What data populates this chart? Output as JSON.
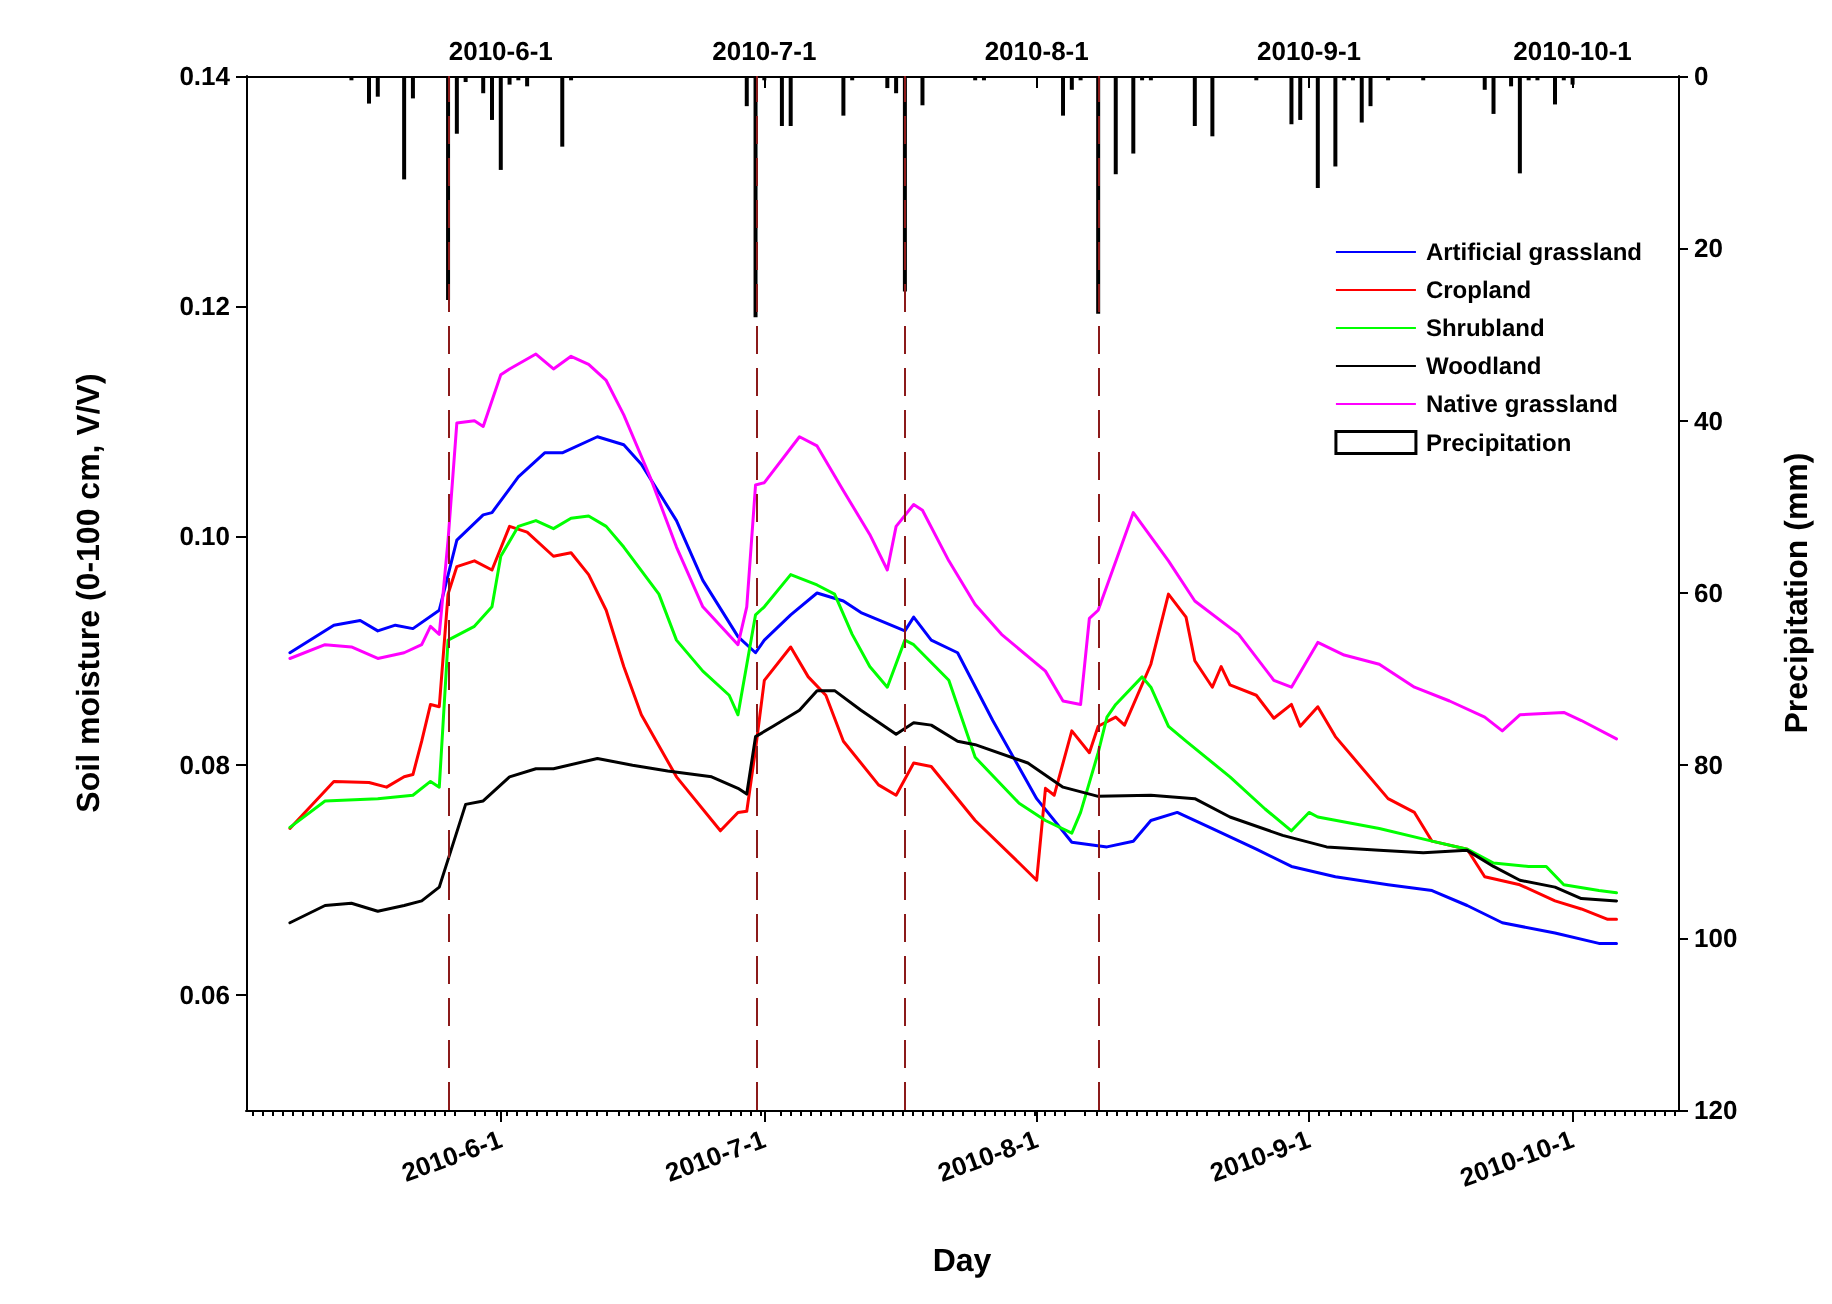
{
  "chart_data": {
    "type": "line",
    "xlabel": "Day",
    "ylabel": "Soil moisture (0-100 cm, V/V)",
    "y2label": "Precipitation (mm)",
    "xlim": [
      "2010-05-03",
      "2010-10-13"
    ],
    "xticks": [
      {
        "value": "2010-06-01",
        "label": "2010-6-1"
      },
      {
        "value": "2010-07-01",
        "label": "2010-7-1"
      },
      {
        "value": "2010-08-01",
        "label": "2010-8-1"
      },
      {
        "value": "2010-09-01",
        "label": "2010-9-1"
      },
      {
        "value": "2010-10-01",
        "label": "2010-10-1"
      }
    ],
    "x2lim": [
      "2010-05-03",
      "2010-10-13"
    ],
    "x2ticks": [
      {
        "value": "2010-06-01",
        "label": "2010-6-1"
      },
      {
        "value": "2010-07-01",
        "label": "2010-7-1"
      },
      {
        "value": "2010-08-01",
        "label": "2010-8-1"
      },
      {
        "value": "2010-09-01",
        "label": "2010-9-1"
      },
      {
        "value": "2010-10-01",
        "label": "2010-10-1"
      }
    ],
    "ylim": [
      0.05,
      0.14
    ],
    "yticks": [
      0.06,
      0.08,
      {
        "value": 0.1,
        "label": "0.10"
      },
      0.12,
      0.14
    ],
    "y2lim": [
      120,
      0
    ],
    "y2ticks": [
      0,
      20,
      40,
      60,
      80,
      100,
      120
    ],
    "grid": false,
    "legend": "top right",
    "ref_lines": [
      {
        "axis": "x",
        "value": "2010-05-26",
        "color": "#8b1a1a",
        "line_style": "dashed"
      },
      {
        "axis": "x",
        "value": "2010-06-30",
        "color": "#8b1a1a",
        "line_style": "dashed"
      },
      {
        "axis": "x",
        "value": "2010-07-17",
        "color": "#8b1a1a",
        "line_style": "dashed"
      },
      {
        "axis": "x",
        "value": "2010-08-08",
        "color": "#8b1a1a",
        "line_style": "dashed"
      }
    ],
    "series": [
      {
        "name": "Artificial grassland",
        "color": "#0000ff",
        "x": [
          "2010-05-08",
          "2010-05-13",
          "2010-05-16",
          "2010-05-18",
          "2010-05-20",
          "2010-05-22",
          "2010-05-25",
          "2010-05-27",
          "2010-05-30",
          "2010-05-31",
          "2010-06-03",
          "2010-06-06",
          "2010-06-08",
          "2010-06-12",
          "2010-06-15",
          "2010-06-17",
          "2010-06-21",
          "2010-06-24",
          "2010-06-28",
          "2010-06-30",
          "2010-07-01",
          "2010-07-04",
          "2010-07-07",
          "2010-07-10",
          "2010-07-12",
          "2010-07-17",
          "2010-07-18",
          "2010-07-20",
          "2010-07-23",
          "2010-07-27",
          "2010-08-01",
          "2010-08-05",
          "2010-08-09",
          "2010-08-12",
          "2010-08-14",
          "2010-08-17",
          "2010-08-21",
          "2010-08-26",
          "2010-08-30",
          "2010-09-04",
          "2010-09-10",
          "2010-09-15",
          "2010-09-19",
          "2010-09-23",
          "2010-09-29",
          "2010-10-04",
          "2010-10-06"
        ],
        "values": [
          0.0898,
          0.0922,
          0.0926,
          0.0917,
          0.0922,
          0.0919,
          0.0935,
          0.0996,
          0.1018,
          0.102,
          0.1051,
          0.1072,
          0.1072,
          0.1086,
          0.1079,
          0.1062,
          0.1013,
          0.0961,
          0.0912,
          0.0898,
          0.0909,
          0.0931,
          0.095,
          0.0943,
          0.0933,
          0.0917,
          0.0929,
          0.0909,
          0.0898,
          0.0839,
          0.0771,
          0.0733,
          0.0729,
          0.0734,
          0.0752,
          0.0759,
          0.0745,
          0.0727,
          0.0712,
          0.0703,
          0.0696,
          0.0691,
          0.0678,
          0.0663,
          0.0654,
          0.0645,
          0.0645
        ]
      },
      {
        "name": "Cropland",
        "color": "#ff0000",
        "x": [
          "2010-05-08",
          "2010-05-13",
          "2010-05-17",
          "2010-05-19",
          "2010-05-21",
          "2010-05-22",
          "2010-05-23",
          "2010-05-24",
          "2010-05-25",
          "2010-05-26",
          "2010-05-27",
          "2010-05-29",
          "2010-05-31",
          "2010-06-02",
          "2010-06-04",
          "2010-06-07",
          "2010-06-09",
          "2010-06-11",
          "2010-06-13",
          "2010-06-15",
          "2010-06-17",
          "2010-06-21",
          "2010-06-26",
          "2010-06-28",
          "2010-06-29",
          "2010-06-30",
          "2010-07-01",
          "2010-07-04",
          "2010-07-06",
          "2010-07-08",
          "2010-07-10",
          "2010-07-14",
          "2010-07-16",
          "2010-07-18",
          "2010-07-20",
          "2010-07-25",
          "2010-07-30",
          "2010-08-01",
          "2010-08-02",
          "2010-08-03",
          "2010-08-05",
          "2010-08-07",
          "2010-08-08",
          "2010-08-10",
          "2010-08-11",
          "2010-08-14",
          "2010-08-16",
          "2010-08-18",
          "2010-08-19",
          "2010-08-21",
          "2010-08-22",
          "2010-08-23",
          "2010-08-26",
          "2010-08-28",
          "2010-08-30",
          "2010-08-31",
          "2010-09-02",
          "2010-09-04",
          "2010-09-06",
          "2010-09-10",
          "2010-09-13",
          "2010-09-15",
          "2010-09-19",
          "2010-09-21",
          "2010-09-25",
          "2010-09-29",
          "2010-10-02",
          "2010-10-05",
          "2010-10-06"
        ],
        "values": [
          0.0745,
          0.0786,
          0.0785,
          0.0781,
          0.079,
          0.0792,
          0.0821,
          0.0853,
          0.0851,
          0.0949,
          0.0973,
          0.0978,
          0.097,
          0.1008,
          0.1003,
          0.0982,
          0.0985,
          0.0966,
          0.0935,
          0.0886,
          0.0844,
          0.079,
          0.0743,
          0.0759,
          0.076,
          0.0814,
          0.0874,
          0.0903,
          0.0877,
          0.0861,
          0.0821,
          0.0783,
          0.0774,
          0.0802,
          0.0799,
          0.0752,
          0.0715,
          0.07,
          0.078,
          0.0774,
          0.083,
          0.0811,
          0.0834,
          0.0842,
          0.0835,
          0.0888,
          0.0949,
          0.0929,
          0.0891,
          0.0868,
          0.0886,
          0.087,
          0.0861,
          0.0841,
          0.0853,
          0.0834,
          0.0851,
          0.0825,
          0.0807,
          0.0771,
          0.0759,
          0.0734,
          0.0727,
          0.0703,
          0.0696,
          0.0682,
          0.0675,
          0.0666,
          0.0666
        ]
      },
      {
        "name": "Shrubland",
        "color": "#00ff00",
        "x": [
          "2010-05-08",
          "2010-05-12",
          "2010-05-18",
          "2010-05-22",
          "2010-05-24",
          "2010-05-25",
          "2010-05-26",
          "2010-05-29",
          "2010-05-31",
          "2010-06-01",
          "2010-06-03",
          "2010-06-05",
          "2010-06-07",
          "2010-06-09",
          "2010-06-11",
          "2010-06-13",
          "2010-06-15",
          "2010-06-19",
          "2010-06-21",
          "2010-06-24",
          "2010-06-27",
          "2010-06-28",
          "2010-06-30",
          "2010-07-01",
          "2010-07-04",
          "2010-07-07",
          "2010-07-09",
          "2010-07-11",
          "2010-07-13",
          "2010-07-15",
          "2010-07-17",
          "2010-07-18",
          "2010-07-22",
          "2010-07-25",
          "2010-07-30",
          "2010-08-02",
          "2010-08-05",
          "2010-08-06",
          "2010-08-08",
          "2010-08-09",
          "2010-08-10",
          "2010-08-13",
          "2010-08-14",
          "2010-08-16",
          "2010-08-18",
          "2010-08-23",
          "2010-08-27",
          "2010-08-30",
          "2010-09-01",
          "2010-09-02",
          "2010-09-09",
          "2010-09-15",
          "2010-09-19",
          "2010-09-22",
          "2010-09-26",
          "2010-09-28",
          "2010-09-30",
          "2010-10-04",
          "2010-10-06"
        ],
        "values": [
          0.0746,
          0.0769,
          0.0771,
          0.0774,
          0.0786,
          0.0781,
          0.0909,
          0.0921,
          0.0938,
          0.0982,
          0.1008,
          0.1013,
          0.1006,
          0.1015,
          0.1017,
          0.1008,
          0.099,
          0.0949,
          0.0909,
          0.0882,
          0.0861,
          0.0844,
          0.0931,
          0.0938,
          0.0966,
          0.0957,
          0.0949,
          0.0914,
          0.0886,
          0.0868,
          0.0909,
          0.0905,
          0.0874,
          0.0807,
          0.0767,
          0.0752,
          0.0741,
          0.0759,
          0.0811,
          0.0842,
          0.0853,
          0.0877,
          0.0868,
          0.0834,
          0.0821,
          0.079,
          0.0762,
          0.0743,
          0.0759,
          0.0755,
          0.0745,
          0.0734,
          0.0727,
          0.0715,
          0.0712,
          0.0712,
          0.0696,
          0.0691,
          0.0689
        ]
      },
      {
        "name": "Woodland",
        "color": "#000000",
        "x": [
          "2010-05-08",
          "2010-05-12",
          "2010-05-15",
          "2010-05-18",
          "2010-05-21",
          "2010-05-23",
          "2010-05-25",
          "2010-05-28",
          "2010-05-30",
          "2010-06-02",
          "2010-06-05",
          "2010-06-07",
          "2010-06-12",
          "2010-06-16",
          "2010-06-20",
          "2010-06-25",
          "2010-06-28",
          "2010-06-29",
          "2010-06-30",
          "2010-07-02",
          "2010-07-05",
          "2010-07-07",
          "2010-07-09",
          "2010-07-12",
          "2010-07-16",
          "2010-07-18",
          "2010-07-20",
          "2010-07-23",
          "2010-07-25",
          "2010-07-31",
          "2010-08-04",
          "2010-08-08",
          "2010-08-14",
          "2010-08-19",
          "2010-08-23",
          "2010-08-29",
          "2010-09-03",
          "2010-09-09",
          "2010-09-14",
          "2010-09-19",
          "2010-09-22",
          "2010-09-25",
          "2010-09-29",
          "2010-10-02",
          "2010-10-06"
        ],
        "values": [
          0.0663,
          0.0678,
          0.068,
          0.0673,
          0.0678,
          0.0682,
          0.0694,
          0.0766,
          0.0769,
          0.079,
          0.0797,
          0.0797,
          0.0806,
          0.08,
          0.0795,
          0.079,
          0.078,
          0.0775,
          0.0825,
          0.0834,
          0.0848,
          0.0865,
          0.0865,
          0.0848,
          0.0827,
          0.0837,
          0.0835,
          0.0821,
          0.0818,
          0.0802,
          0.0781,
          0.0773,
          0.0774,
          0.0771,
          0.0755,
          0.0739,
          0.0729,
          0.0726,
          0.0724,
          0.0726,
          0.0712,
          0.07,
          0.0694,
          0.0684,
          0.0682
        ]
      },
      {
        "name": "Native grassland",
        "color": "#ff00ff",
        "x": [
          "2010-05-08",
          "2010-05-12",
          "2010-05-15",
          "2010-05-18",
          "2010-05-21",
          "2010-05-23",
          "2010-05-24",
          "2010-05-25",
          "2010-05-26",
          "2010-05-27",
          "2010-05-29",
          "2010-05-30",
          "2010-06-01",
          "2010-06-02",
          "2010-06-05",
          "2010-06-07",
          "2010-06-09",
          "2010-06-11",
          "2010-06-13",
          "2010-06-15",
          "2010-06-18",
          "2010-06-21",
          "2010-06-24",
          "2010-06-28",
          "2010-06-29",
          "2010-06-30",
          "2010-07-01",
          "2010-07-05",
          "2010-07-07",
          "2010-07-10",
          "2010-07-13",
          "2010-07-15",
          "2010-07-16",
          "2010-07-18",
          "2010-07-19",
          "2010-07-22",
          "2010-07-25",
          "2010-07-28",
          "2010-08-02",
          "2010-08-04",
          "2010-08-06",
          "2010-08-07",
          "2010-08-08",
          "2010-08-12",
          "2010-08-16",
          "2010-08-19",
          "2010-08-24",
          "2010-08-28",
          "2010-08-30",
          "2010-09-02",
          "2010-09-05",
          "2010-09-09",
          "2010-09-13",
          "2010-09-17",
          "2010-09-21",
          "2010-09-23",
          "2010-09-25",
          "2010-09-30",
          "2010-10-02",
          "2010-10-06"
        ],
        "values": [
          0.0893,
          0.0905,
          0.0903,
          0.0893,
          0.0898,
          0.0905,
          0.0921,
          0.0914,
          0.0996,
          0.1098,
          0.11,
          0.1095,
          0.114,
          0.1145,
          0.1158,
          0.1145,
          0.1156,
          0.1149,
          0.1135,
          0.1105,
          0.1051,
          0.099,
          0.0938,
          0.0905,
          0.0938,
          0.1044,
          0.1046,
          0.1086,
          0.1078,
          0.1039,
          0.1001,
          0.097,
          0.1008,
          0.1027,
          0.1022,
          0.0978,
          0.094,
          0.0914,
          0.0882,
          0.0856,
          0.0853,
          0.0928,
          0.0935,
          0.102,
          0.0978,
          0.0943,
          0.0914,
          0.0874,
          0.0868,
          0.0907,
          0.0896,
          0.0888,
          0.0868,
          0.0856,
          0.0842,
          0.083,
          0.0844,
          0.0846,
          0.0839,
          0.0823
        ]
      },
      {
        "name": "Precipitation",
        "type": "bar",
        "axis": "y2",
        "color": "#000000",
        "x": [
          "2010-05-15",
          "2010-05-17",
          "2010-05-18",
          "2010-05-21",
          "2010-05-22",
          "2010-05-26",
          "2010-05-27",
          "2010-05-28",
          "2010-05-30",
          "2010-05-31",
          "2010-06-01",
          "2010-06-02",
          "2010-06-03",
          "2010-06-04",
          "2010-06-08",
          "2010-06-09",
          "2010-06-29",
          "2010-06-30",
          "2010-07-01",
          "2010-07-03",
          "2010-07-04",
          "2010-07-10",
          "2010-07-11",
          "2010-07-15",
          "2010-07-16",
          "2010-07-17",
          "2010-07-19",
          "2010-07-25",
          "2010-07-26",
          "2010-08-04",
          "2010-08-05",
          "2010-08-06",
          "2010-08-08",
          "2010-08-10",
          "2010-08-12",
          "2010-08-13",
          "2010-08-14",
          "2010-08-19",
          "2010-08-21",
          "2010-08-26",
          "2010-08-30",
          "2010-08-31",
          "2010-09-02",
          "2010-09-04",
          "2010-09-05",
          "2010-09-06",
          "2010-09-07",
          "2010-09-08",
          "2010-09-10",
          "2010-09-14",
          "2010-09-21",
          "2010-09-22",
          "2010-09-24",
          "2010-09-25",
          "2010-09-26",
          "2010-09-27",
          "2010-09-29",
          "2010-09-30",
          "2010-10-01"
        ],
        "values": [
          0.5,
          3.2,
          2.4,
          12,
          2.6,
          26,
          6.7,
          0.7,
          2,
          5.1,
          10.9,
          1,
          0.5,
          1.2,
          8.2,
          0.5,
          3.5,
          28,
          0.5,
          5.8,
          5.8,
          4.6,
          0.5,
          1.4,
          2,
          25,
          3.4,
          0.5,
          0.5,
          4.6,
          1.6,
          0.5,
          27.6,
          11.4,
          9,
          0.5,
          0.5,
          5.8,
          7,
          0.5,
          5.6,
          5.1,
          13,
          10.5,
          0.5,
          0.5,
          5.4,
          3.5,
          0.5,
          0.5,
          1.6,
          4.4,
          1.2,
          11.3,
          0.5,
          0.5,
          3.3,
          0.5,
          1
        ]
      }
    ]
  }
}
